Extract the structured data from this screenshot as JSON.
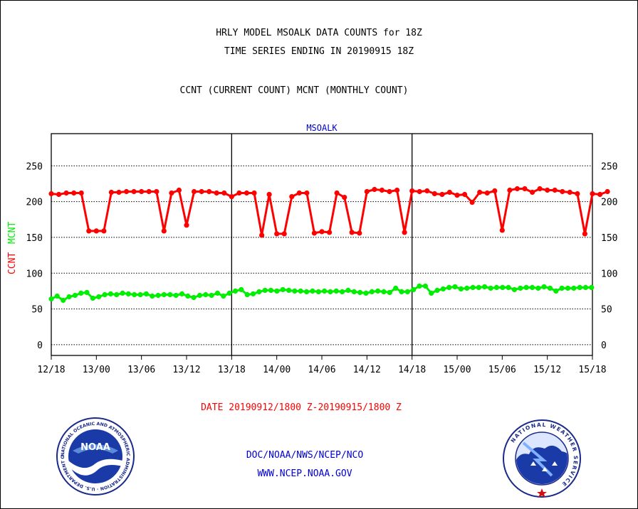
{
  "header": {
    "title_line1": "HRLY MODEL MSOALK DATA COUNTS for 18Z",
    "title_line2": "TIME SERIES ENDING IN 20190915 18Z",
    "subtitle": "CCNT (CURRENT COUNT) MCNT (MONTHLY COUNT)"
  },
  "footer": {
    "date_range": "DATE 20190912/1800 Z-20190915/1800 Z",
    "org_path": "DOC/NOAA/NWS/NCEP/NCO",
    "website": "WWW.NCEP.NOAA.GOV"
  },
  "logos": {
    "noaa_center": "NOAA",
    "noaa_ring": "NATIONAL OCEANIC AND ATMOSPHERIC ADMINISTRATION · U.S. DEPARTMENT OF COMMERCE",
    "nws_ring": "NATIONAL WEATHER SERVICE"
  },
  "colors": {
    "ccnt": "#ff0000",
    "mcnt": "#00ee00",
    "station_label": "#0000cc",
    "footer_text": "#0000cc",
    "date_text": "#ff0000"
  },
  "chart_data": {
    "type": "line",
    "station_label": "MSOALK",
    "ylabel_ccnt": "CCNT",
    "ylabel_mcnt": "MCNT",
    "ylim": [
      -15,
      295
    ],
    "yticks": [
      0,
      50,
      100,
      150,
      200,
      250
    ],
    "xlim": [
      0,
      72
    ],
    "x_unit": "hours after 20190912/1800 Z",
    "x_ticks": [
      {
        "x": 0,
        "label": "12/18"
      },
      {
        "x": 6,
        "label": "13/00"
      },
      {
        "x": 12,
        "label": "13/06"
      },
      {
        "x": 18,
        "label": "13/12"
      },
      {
        "x": 24,
        "label": "13/18"
      },
      {
        "x": 30,
        "label": "14/00"
      },
      {
        "x": 36,
        "label": "14/06"
      },
      {
        "x": 42,
        "label": "14/12"
      },
      {
        "x": 48,
        "label": "14/18"
      },
      {
        "x": 54,
        "label": "15/00"
      },
      {
        "x": 60,
        "label": "15/06"
      },
      {
        "x": 66,
        "label": "15/12"
      },
      {
        "x": 72,
        "label": "15/18"
      }
    ],
    "day_separators": [
      24,
      48
    ],
    "grid": "horizontal dotted",
    "series": [
      {
        "name": "CCNT",
        "values": [
          211,
          210,
          212,
          212,
          212,
          159,
          159,
          159,
          213,
          213,
          214,
          214,
          214,
          214,
          214,
          159,
          212,
          216,
          167,
          214,
          214,
          214,
          212,
          212,
          207,
          212,
          212,
          212,
          153,
          210,
          155,
          155,
          207,
          212,
          212,
          156,
          158,
          157,
          212,
          206,
          157,
          156,
          214,
          217,
          216,
          214,
          216,
          157,
          215,
          214,
          215,
          211,
          210,
          213,
          209,
          210,
          199,
          213,
          212,
          215,
          160,
          216,
          218,
          218,
          213,
          218,
          216,
          216,
          214,
          213,
          211,
          155,
          211,
          210,
          214
        ],
        "x_start": 0,
        "x_step": 1
      },
      {
        "name": "MCNT",
        "values": [
          64,
          68,
          62,
          67,
          69,
          72,
          73,
          65,
          67,
          70,
          71,
          70,
          72,
          71,
          70,
          70,
          71,
          68,
          69,
          70,
          70,
          69,
          71,
          68,
          66,
          69,
          70,
          69,
          72,
          68,
          72,
          75,
          77,
          70,
          71,
          74,
          76,
          76,
          75,
          77,
          76,
          75,
          75,
          74,
          75,
          74,
          75,
          74,
          75,
          74,
          76,
          74,
          73,
          72,
          74,
          75,
          74,
          73,
          79,
          74,
          74,
          77,
          82,
          82,
          72,
          76,
          78,
          80,
          81,
          78,
          79,
          80,
          80,
          81,
          79,
          80,
          80,
          80,
          77,
          79,
          80,
          80,
          79,
          81,
          79,
          75,
          79,
          79,
          79,
          80,
          80,
          80
        ],
        "x_start": 0,
        "x_step": 0.79
      }
    ]
  }
}
